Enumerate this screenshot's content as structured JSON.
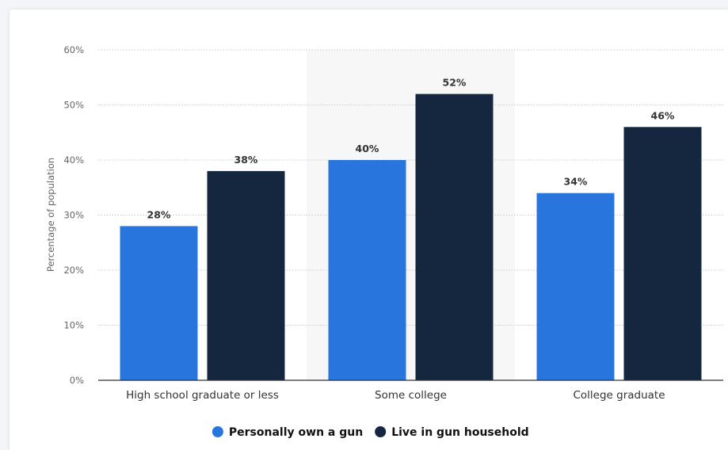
{
  "chart_data": {
    "type": "bar",
    "categories": [
      "High school graduate or less",
      "Some college",
      "College graduate"
    ],
    "series": [
      {
        "name": "Personally own a gun",
        "values": [
          28,
          40,
          34
        ],
        "color": "#2876dd"
      },
      {
        "name": "Live in gun household",
        "values": [
          38,
          52,
          46
        ],
        "color": "#14273e"
      }
    ],
    "ylabel": "Percentage of population",
    "ylim": [
      0,
      60
    ],
    "yticks": [
      0,
      10,
      20,
      30,
      40,
      50,
      60
    ],
    "value_suffix": "%",
    "tick_suffix": "%",
    "grid": true,
    "highlighted_category": 1,
    "highlight_color": "#f7f7f8",
    "legend_position": "bottom-center"
  }
}
